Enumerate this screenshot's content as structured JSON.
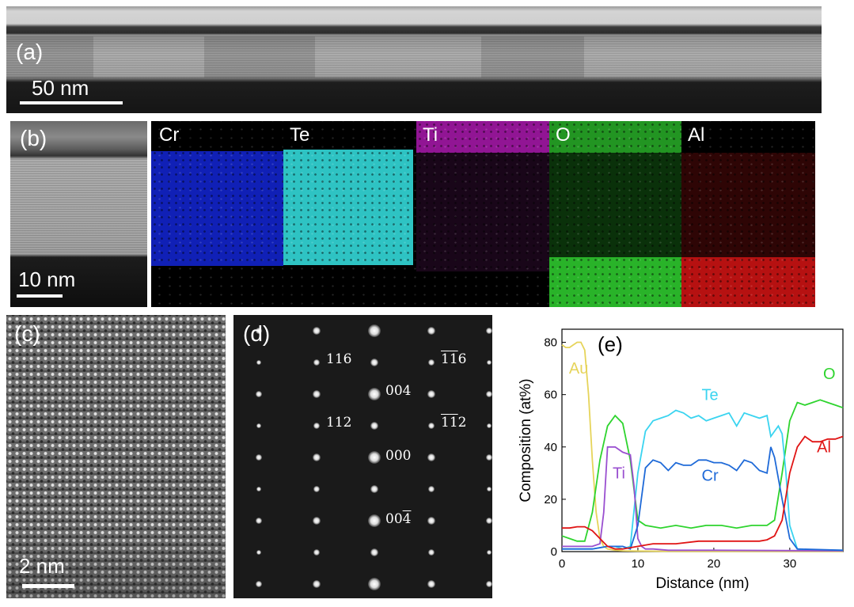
{
  "panel_a": {
    "label": "(a)",
    "scale_bar": "50 nm"
  },
  "panel_b": {
    "label": "(b)",
    "scale_bar": "10 nm",
    "maps": [
      {
        "element": "Cr",
        "color": "#1326d6"
      },
      {
        "element": "Te",
        "color": "#33d8d8"
      },
      {
        "element": "Ti",
        "color": "#c21cc6"
      },
      {
        "element": "O",
        "color": "#2ec72e"
      },
      {
        "element": "Al",
        "color": "#d61414"
      }
    ]
  },
  "panel_c": {
    "label": "(c)",
    "scale_bar": "2 nm"
  },
  "panel_d": {
    "label": "(d)",
    "spot_labels": {
      "s116": "116",
      "s004": "004",
      "s112": "112",
      "s000": "000",
      "s004bar_digits": "00",
      "s004bar_bar": "4",
      "sbar116_a": "1",
      "sbar116_b": "1",
      "sbar116_c": "6",
      "sbar112_a": "1",
      "sbar112_b": "1",
      "sbar112_c": "2"
    }
  },
  "chart_data": {
    "panel_label": "(e)",
    "type": "line",
    "xlabel": "Distance (nm)",
    "ylabel": "Composition (at%)",
    "xlim": [
      0,
      37
    ],
    "ylim": [
      0,
      85
    ],
    "xticks": [
      0,
      10,
      20,
      30
    ],
    "yticks": [
      0,
      20,
      40,
      60,
      80
    ],
    "grid": false,
    "series": [
      {
        "name": "Au",
        "color": "#e6d45a",
        "x": [
          0,
          0.5,
          1,
          1.5,
          2,
          2.5,
          3,
          3.5,
          4,
          4.5,
          5,
          5.5,
          6,
          7,
          8,
          10,
          15,
          20,
          25,
          30,
          37
        ],
        "y": [
          79,
          78,
          78,
          79,
          80,
          80,
          77,
          60,
          35,
          15,
          5,
          2,
          1,
          0.5,
          0.3,
          0.2,
          0.1,
          0.1,
          0.1,
          0.1,
          0.1
        ]
      },
      {
        "name": "O",
        "color": "#2ed42e",
        "x": [
          0,
          1,
          2,
          3,
          4,
          5,
          6,
          7,
          8,
          9,
          10,
          11,
          13,
          15,
          17,
          19,
          21,
          23,
          25,
          27,
          28,
          29,
          30,
          31,
          32,
          33,
          34,
          35,
          36,
          37
        ],
        "y": [
          6,
          5,
          4,
          4,
          15,
          35,
          48,
          52,
          49,
          35,
          12,
          10,
          9,
          10,
          9,
          10,
          10,
          9,
          10,
          10,
          12,
          30,
          50,
          57,
          56,
          57,
          58,
          57,
          56,
          55
        ]
      },
      {
        "name": "Te",
        "color": "#3ad4f0",
        "x": [
          0,
          4,
          6,
          7,
          8,
          9,
          10,
          11,
          12,
          13,
          14,
          15,
          16,
          17,
          18,
          19,
          20,
          21,
          22,
          23,
          24,
          25,
          26,
          27,
          27.5,
          28,
          28.5,
          29,
          29.5,
          30,
          31,
          32,
          37
        ],
        "y": [
          1,
          1,
          2,
          2,
          1,
          2,
          30,
          46,
          50,
          51,
          52,
          54,
          53,
          51,
          52,
          50,
          51,
          52,
          53,
          48,
          53,
          52,
          51,
          52,
          44,
          46,
          48,
          45,
          30,
          10,
          1,
          0.5,
          0.5
        ]
      },
      {
        "name": "Ti",
        "color": "#9a4fd0",
        "x": [
          0,
          4,
          5,
          5.5,
          6,
          7,
          8,
          9,
          9.5,
          10,
          10.5,
          11,
          12,
          14,
          20,
          37
        ],
        "y": [
          2,
          2,
          3,
          15,
          40,
          40,
          38,
          37,
          25,
          5,
          2,
          1,
          1,
          0.5,
          0.5,
          0.3
        ]
      },
      {
        "name": "Cr",
        "color": "#1f6ad8",
        "x": [
          0,
          4,
          6,
          8,
          9,
          10,
          11,
          12,
          13,
          14,
          15,
          16,
          17,
          18,
          19,
          20,
          21,
          22,
          23,
          24,
          25,
          26,
          27,
          27.5,
          28,
          29,
          30,
          31,
          37
        ],
        "y": [
          1,
          1,
          2,
          2,
          1,
          10,
          32,
          35,
          34,
          31,
          34,
          33,
          33,
          35,
          35,
          34,
          34,
          33,
          31,
          35,
          34,
          31,
          30,
          40,
          36,
          20,
          5,
          1,
          0.5
        ]
      },
      {
        "name": "Al",
        "color": "#e01414",
        "x": [
          0,
          1,
          2,
          3,
          4,
          5,
          6,
          7,
          8,
          10,
          12,
          15,
          18,
          20,
          22,
          24,
          26,
          27,
          28,
          29,
          30,
          31,
          32,
          33,
          34,
          35,
          36,
          37
        ],
        "y": [
          9,
          9,
          9.5,
          9.5,
          8,
          5,
          2,
          1,
          1,
          2,
          3,
          3,
          4,
          4,
          4,
          4,
          4,
          4.5,
          6,
          12,
          30,
          40,
          44,
          42,
          42,
          43,
          43,
          44
        ]
      }
    ]
  }
}
